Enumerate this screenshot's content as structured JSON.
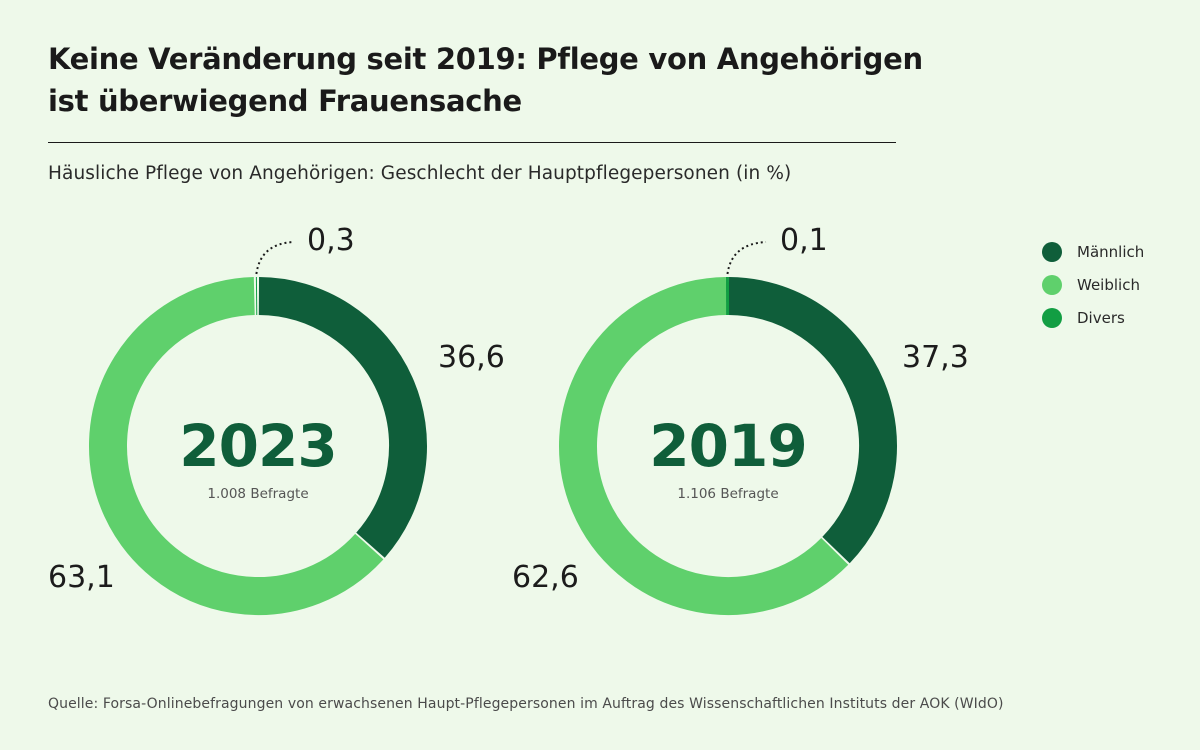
{
  "title_line1": "Keine Veränderung seit 2019: Pflege von Angehörigen",
  "title_line2": "ist überwiegend Frauensache",
  "subtitle": "Häusliche Pflege von Angehörigen: Geschlecht der Hauptpflegepersonen (in %)",
  "source": "Quelle: Forsa-Onlinebefragungen von erwachsenen Haupt-Pflegepersonen im Auftrag des Wissenschaftlichen Instituts der AOK (WIdO)",
  "legend": [
    {
      "label": "Männlich",
      "color": "#0f5e3a"
    },
    {
      "label": "Weiblich",
      "color": "#5fd06c"
    },
    {
      "label": "Divers",
      "color": "#129e43"
    }
  ],
  "chart_data": [
    {
      "type": "pie",
      "donut": true,
      "center_label": "2023",
      "center_sublabel": "1.008 Befragte",
      "slices": [
        {
          "name": "Männlich",
          "value": 36.6,
          "label": "36,6",
          "color": "#0f5e3a"
        },
        {
          "name": "Weiblich",
          "value": 63.1,
          "label": "63,1",
          "color": "#5fd06c"
        },
        {
          "name": "Divers",
          "value": 0.3,
          "label": "0,3",
          "color": "#129e43"
        }
      ]
    },
    {
      "type": "pie",
      "donut": true,
      "center_label": "2019",
      "center_sublabel": "1.106 Befragte",
      "slices": [
        {
          "name": "Männlich",
          "value": 37.3,
          "label": "37,3",
          "color": "#0f5e3a"
        },
        {
          "name": "Weiblich",
          "value": 62.6,
          "label": "62,6",
          "color": "#5fd06c"
        },
        {
          "name": "Divers",
          "value": 0.1,
          "label": "0,1",
          "color": "#129e43"
        }
      ]
    }
  ]
}
